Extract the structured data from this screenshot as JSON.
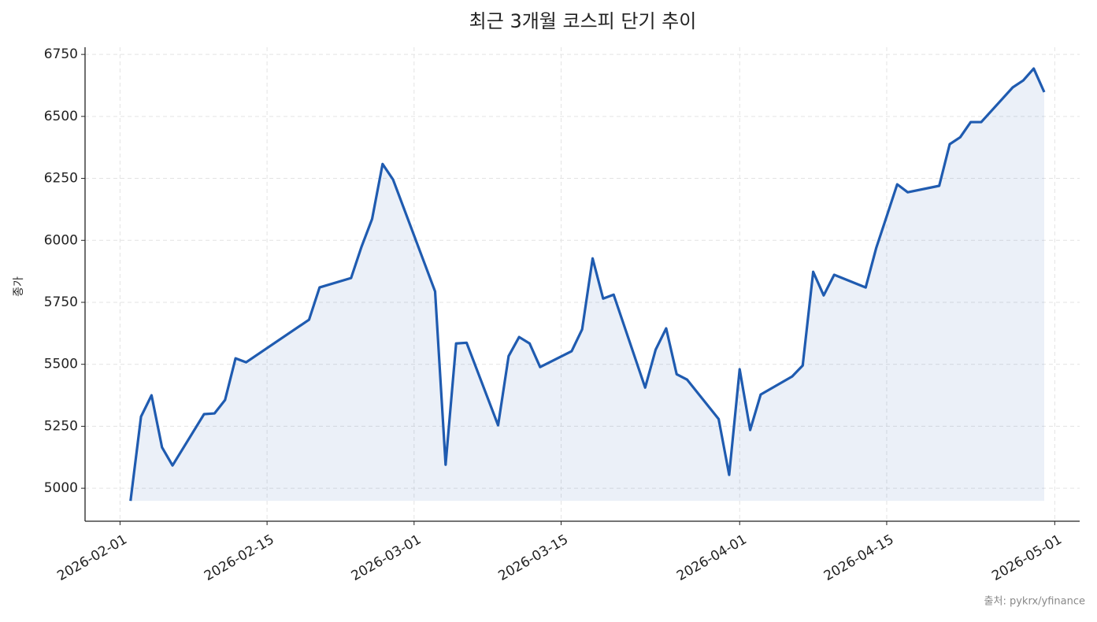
{
  "chart_data": {
    "type": "line",
    "title": "최근 3개월 코스피 단기 추이",
    "y_label": "종가",
    "source": "출처: pykrx/yfinance",
    "x": [
      "2026-02-02",
      "2026-02-03",
      "2026-02-04",
      "2026-02-05",
      "2026-02-06",
      "2026-02-09",
      "2026-02-10",
      "2026-02-11",
      "2026-02-12",
      "2026-02-13",
      "2026-02-19",
      "2026-02-20",
      "2026-02-23",
      "2026-02-24",
      "2026-02-25",
      "2026-02-26",
      "2026-02-27",
      "2026-03-03",
      "2026-03-04",
      "2026-03-05",
      "2026-03-06",
      "2026-03-09",
      "2026-03-10",
      "2026-03-11",
      "2026-03-12",
      "2026-03-13",
      "2026-03-16",
      "2026-03-17",
      "2026-03-18",
      "2026-03-19",
      "2026-03-20",
      "2026-03-23",
      "2026-03-24",
      "2026-03-25",
      "2026-03-26",
      "2026-03-27",
      "2026-03-30",
      "2026-03-31",
      "2026-04-01",
      "2026-04-02",
      "2026-04-03",
      "2026-04-06",
      "2026-04-07",
      "2026-04-08",
      "2026-04-09",
      "2026-04-10",
      "2026-04-13",
      "2026-04-14",
      "2026-04-15",
      "2026-04-16",
      "2026-04-17",
      "2026-04-20",
      "2026-04-21",
      "2026-04-22",
      "2026-04-23",
      "2026-04-24",
      "2026-04-27",
      "2026-04-28",
      "2026-04-29",
      "2026-04-30"
    ],
    "series": [
      {
        "name": "종가",
        "color": "#1f5bb0",
        "values": [
          4949,
          5289,
          5375,
          5165,
          5092,
          5299,
          5302,
          5356,
          5524,
          5508,
          5680,
          5810,
          5848,
          5975,
          6086,
          6308,
          6245,
          5794,
          5095,
          5584,
          5587,
          5254,
          5533,
          5610,
          5584,
          5489,
          5553,
          5641,
          5927,
          5765,
          5781,
          5406,
          5559,
          5645,
          5460,
          5438,
          5279,
          5054,
          5480,
          5235,
          5378,
          5451,
          5495,
          5873,
          5778,
          5861,
          5810,
          5969,
          6097,
          6226,
          6194,
          6220,
          6388,
          6416,
          6477,
          6477,
          6617,
          6645,
          6693,
          6598
        ]
      }
    ],
    "xlim": [
      "2026-01-29",
      "2026-05-03"
    ],
    "xticks": [
      "2026-02-01",
      "2026-02-15",
      "2026-03-01",
      "2026-03-15",
      "2026-04-01",
      "2026-04-15",
      "2026-05-01"
    ],
    "ylim": [
      4867,
      6779
    ],
    "yticks": [
      5000,
      5250,
      5500,
      5750,
      6000,
      6250,
      6500,
      6750
    ],
    "grid": true,
    "area_fill": true
  }
}
